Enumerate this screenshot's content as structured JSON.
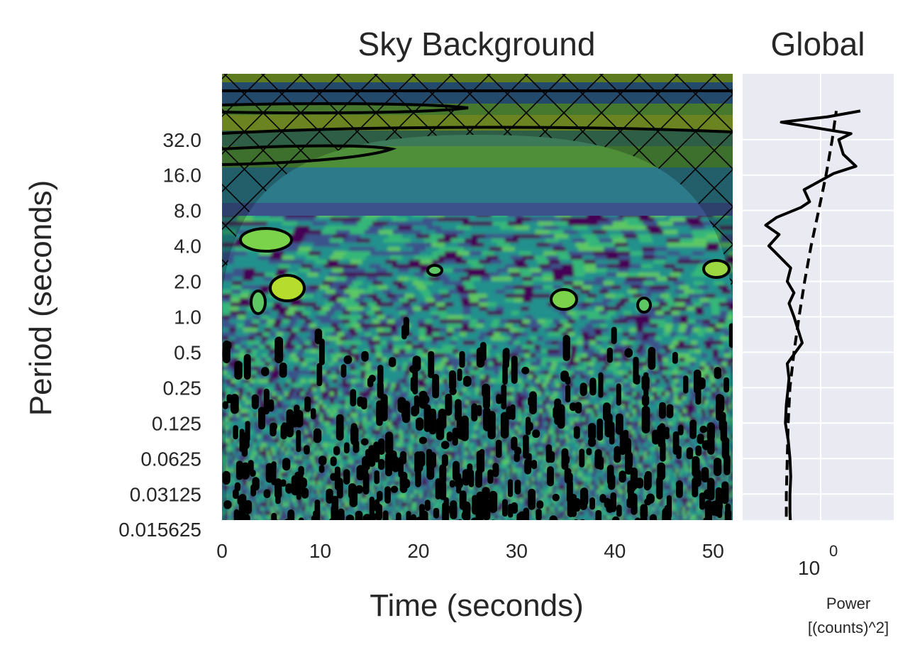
{
  "chart_data": [
    {
      "type": "heatmap",
      "title": "Sky Background",
      "xlabel": "Time (seconds)",
      "ylabel": "Period (seconds)",
      "xlim": [
        0,
        52
      ],
      "x_ticks": [
        0,
        10,
        20,
        30,
        40,
        50
      ],
      "y_scale": "log2",
      "y_ticks": [
        "32.0",
        "16.0",
        "8.0",
        "4.0",
        "2.0",
        "1.0",
        "0.5",
        "0.25",
        "0.125",
        "0.0625",
        "0.03125",
        "0.015625"
      ],
      "y_tick_values": [
        32,
        16,
        8,
        4,
        2,
        1,
        0.5,
        0.25,
        0.125,
        0.0625,
        0.03125,
        0.015625
      ],
      "colormap": "viridis",
      "overlays": [
        "black significance contours",
        "cone of influence hatched (x)",
        "shaded region outside cone of influence"
      ],
      "grid": false
    },
    {
      "type": "line",
      "title": "Global",
      "xlabel": "Power\n[(counts)^2]",
      "x_scale": "log",
      "x_tick_label_base": "10",
      "x_tick_label_exponent": "0",
      "y_scale": "log2",
      "y_shared_with": "Sky Background",
      "grid": true,
      "background": "#eaeaf2",
      "series": [
        {
          "style": "solid",
          "color": "#000000",
          "points": [
            [
              0.34,
              0.0109
            ],
            [
              0.42,
              0.0122
            ],
            [
              0.46,
              0.0156
            ],
            [
              0.45,
              0.022
            ],
            [
              0.45,
              0.031
            ],
            [
              0.46,
              0.044
            ],
            [
              0.45,
              0.0625
            ],
            [
              0.43,
              0.09
            ],
            [
              0.4,
              0.125
            ],
            [
              0.41,
              0.18
            ],
            [
              0.43,
              0.25
            ],
            [
              0.44,
              0.3
            ],
            [
              0.42,
              0.4
            ],
            [
              0.62,
              0.6
            ],
            [
              0.55,
              0.8
            ],
            [
              0.5,
              1.0
            ],
            [
              0.44,
              1.3
            ],
            [
              0.5,
              1.6
            ],
            [
              0.42,
              2.0
            ],
            [
              0.46,
              2.6
            ],
            [
              0.3,
              3.6
            ],
            [
              0.26,
              4.0
            ],
            [
              0.34,
              5.0
            ],
            [
              0.24,
              6.0
            ],
            [
              0.32,
              7.0
            ],
            [
              0.6,
              8.5
            ],
            [
              0.75,
              9.5
            ],
            [
              0.65,
              12.0
            ],
            [
              1.4,
              16.5
            ],
            [
              2.5,
              19.0
            ],
            [
              1.8,
              24.0
            ],
            [
              1.6,
              32.0
            ],
            [
              2.2,
              36.0
            ],
            [
              0.36,
              45.0
            ],
            [
              1.2,
              50.0
            ],
            [
              2.8,
              56.0
            ]
          ]
        },
        {
          "style": "dashed",
          "color": "#000000",
          "points": [
            [
              0.4,
              0.0109
            ],
            [
              0.41,
              0.0156
            ],
            [
              0.41,
              0.031
            ],
            [
              0.42,
              0.0625
            ],
            [
              0.43,
              0.125
            ],
            [
              0.45,
              0.25
            ],
            [
              0.5,
              0.5
            ],
            [
              0.57,
              1.0
            ],
            [
              0.66,
              2.0
            ],
            [
              0.78,
              4.0
            ],
            [
              0.95,
              8.0
            ],
            [
              1.15,
              16.0
            ],
            [
              1.35,
              32.0
            ],
            [
              1.5,
              56.0
            ]
          ]
        }
      ]
    }
  ]
}
